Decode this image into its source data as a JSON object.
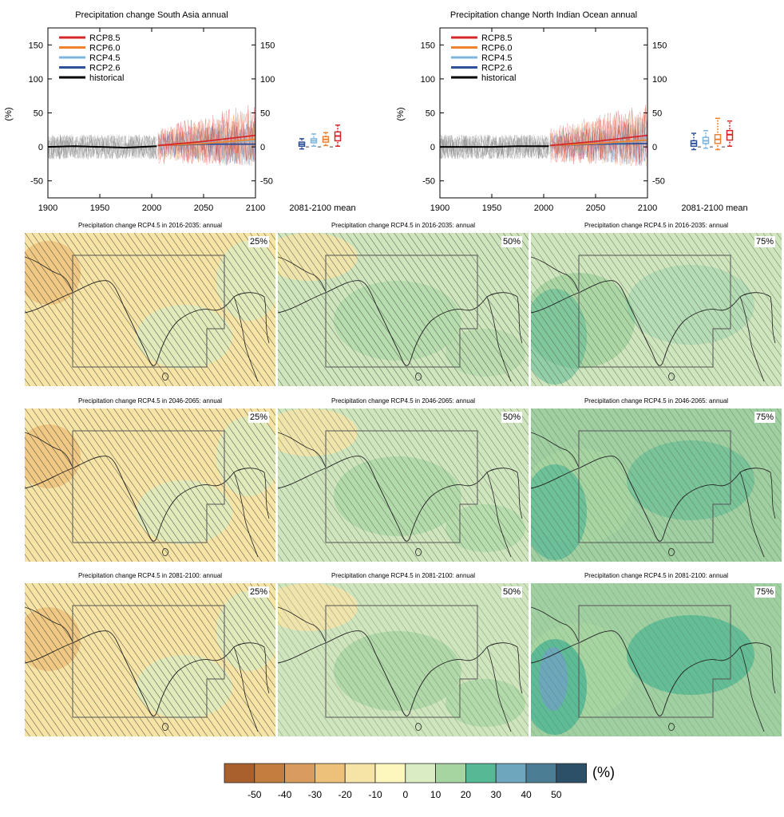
{
  "timeseries": [
    {
      "title": "Precipitation change South Asia annual",
      "region_key": "sa"
    },
    {
      "title": "Precipitation change North Indian Ocean annual",
      "region_key": "nio"
    }
  ],
  "chart_data": [
    {
      "type": "line",
      "title": "Precipitation change South Asia annual",
      "ylabel": "(%)",
      "xlim": [
        1900,
        2100
      ],
      "ylim": [
        -75,
        175
      ],
      "xticks": [
        1900,
        1950,
        2000,
        2050,
        2100
      ],
      "yticks": [
        -50,
        0,
        50,
        100,
        150
      ],
      "ytick_labels": [
        "-50",
        "0",
        "50",
        "100",
        "150"
      ],
      "legend": [
        "RCP8.5",
        "RCP6.0",
        "RCP4.5",
        "RCP2.6",
        "historical"
      ],
      "series": [
        {
          "name": "historical",
          "x": [
            1900,
            1925,
            1950,
            1975,
            2005
          ],
          "y": [
            0,
            1,
            0,
            -1,
            1
          ]
        },
        {
          "name": "RCP2.6",
          "x": [
            2006,
            2050,
            2100
          ],
          "y": [
            2,
            4,
            4
          ]
        },
        {
          "name": "RCP4.5",
          "x": [
            2006,
            2050,
            2100
          ],
          "y": [
            2,
            6,
            9
          ]
        },
        {
          "name": "RCP6.0",
          "x": [
            2006,
            2050,
            2100
          ],
          "y": [
            2,
            5,
            11
          ]
        },
        {
          "name": "RCP8.5",
          "x": [
            2006,
            2050,
            2100
          ],
          "y": [
            2,
            8,
            17
          ]
        }
      ],
      "boxes_label": "2081-2100 mean",
      "boxes": [
        {
          "name": "RCP2.6",
          "median": 4,
          "q1": 1,
          "q3": 7,
          "min": -3,
          "max": 12
        },
        {
          "name": "RCP4.5",
          "median": 9,
          "q1": 6,
          "q3": 12,
          "min": 1,
          "max": 19
        },
        {
          "name": "RCP6.0",
          "median": 11,
          "q1": 7,
          "q3": 15,
          "min": 2,
          "max": 21
        },
        {
          "name": "RCP8.5",
          "median": 16,
          "q1": 9,
          "q3": 22,
          "min": 1,
          "max": 32
        }
      ]
    },
    {
      "type": "line",
      "title": "Precipitation change North Indian Ocean annual",
      "ylabel": "(%)",
      "xlim": [
        1900,
        2100
      ],
      "ylim": [
        -75,
        175
      ],
      "xticks": [
        1900,
        1950,
        2000,
        2050,
        2100
      ],
      "yticks": [
        -50,
        0,
        50,
        100,
        150
      ],
      "ytick_labels": [
        "-50",
        "0",
        "50",
        "100",
        "150"
      ],
      "legend": [
        "RCP8.5",
        "RCP6.0",
        "RCP4.5",
        "RCP2.6",
        "historical"
      ],
      "series": [
        {
          "name": "historical",
          "x": [
            1900,
            1925,
            1950,
            1975,
            2005
          ],
          "y": [
            0,
            0,
            0,
            1,
            1
          ]
        },
        {
          "name": "RCP2.6",
          "x": [
            2006,
            2050,
            2100
          ],
          "y": [
            2,
            4,
            5
          ]
        },
        {
          "name": "RCP4.5",
          "x": [
            2006,
            2050,
            2100
          ],
          "y": [
            2,
            5,
            9
          ]
        },
        {
          "name": "RCP6.0",
          "x": [
            2006,
            2050,
            2100
          ],
          "y": [
            2,
            5,
            10
          ]
        },
        {
          "name": "RCP8.5",
          "x": [
            2006,
            2050,
            2100
          ],
          "y": [
            2,
            8,
            17
          ]
        }
      ],
      "boxes_label": "2081-2100 mean",
      "boxes": [
        {
          "name": "RCP2.6",
          "median": 5,
          "q1": 1,
          "q3": 9,
          "min": -4,
          "max": 20
        },
        {
          "name": "RCP4.5",
          "median": 9,
          "q1": 5,
          "q3": 14,
          "min": -2,
          "max": 24
        },
        {
          "name": "RCP6.0",
          "median": 11,
          "q1": 5,
          "q3": 18,
          "min": -4,
          "max": 42
        },
        {
          "name": "RCP8.5",
          "median": 18,
          "q1": 10,
          "q3": 24,
          "min": 1,
          "max": 38
        }
      ]
    }
  ],
  "maps": [
    {
      "title": "Precipitation change RCP4.5 in 2016-2035: annual",
      "percentile": "25%",
      "base": "#f6e4a6"
    },
    {
      "title": "Precipitation change RCP4.5 in 2016-2035: annual",
      "percentile": "50%",
      "base": "#cfe5bd"
    },
    {
      "title": "Precipitation change RCP4.5 in 2016-2035: annual",
      "percentile": "75%",
      "base": "#cfe5bd"
    },
    {
      "title": "Precipitation change RCP4.5 in 2046-2065: annual",
      "percentile": "25%",
      "base": "#f6e4a6"
    },
    {
      "title": "Precipitation change RCP4.5 in 2046-2065: annual",
      "percentile": "50%",
      "base": "#cfe5bd"
    },
    {
      "title": "Precipitation change RCP4.5 in 2046-2065: annual",
      "percentile": "75%",
      "base": "#a0d0a1"
    },
    {
      "title": "Precipitation change RCP4.5 in 2081-2100: annual",
      "percentile": "25%",
      "base": "#f6e4a6"
    },
    {
      "title": "Precipitation change RCP4.5 in 2081-2100: annual",
      "percentile": "50%",
      "base": "#cfe5bd"
    },
    {
      "title": "Precipitation change RCP4.5 in 2081-2100: annual",
      "percentile": "75%",
      "base": "#a0d0a1"
    }
  ],
  "colorbar": {
    "unit": "(%)",
    "labels": [
      "-50",
      "-40",
      "-30",
      "-20",
      "-10",
      "0",
      "10",
      "20",
      "30",
      "40",
      "50"
    ],
    "colors": [
      "#a9602c",
      "#c37d3e",
      "#d99c5e",
      "#edc17a",
      "#f6e4a6",
      "#fdf6bd",
      "#d9ecc4",
      "#a7d5a2",
      "#56b894",
      "#6ea6bd",
      "#4b7e95",
      "#2b5068"
    ]
  },
  "colors": {
    "rcp85": "#d62728",
    "rcp60": "#f0822e",
    "rcp45": "#7fb6de",
    "rcp26": "#2e4f99",
    "historical": "#000000"
  }
}
